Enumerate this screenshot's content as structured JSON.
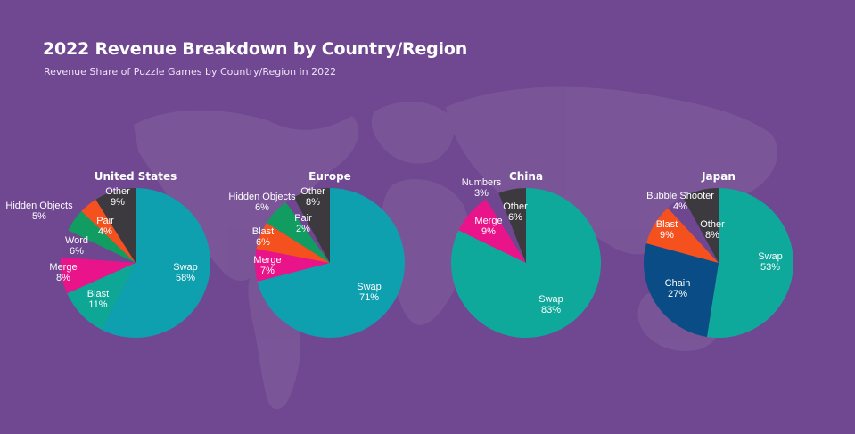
{
  "header": {
    "title": "2022 Revenue Breakdown by Country/Region",
    "subtitle": "Revenue Share of Puzzle Games by Country/Region in 2022"
  },
  "colors": {
    "background": "#704791",
    "map": "#7e5a9c"
  },
  "chart_data": [
    {
      "type": "pie",
      "title": "United States",
      "slices": [
        {
          "label": "Swap",
          "value": 58,
          "display": "58%",
          "color": "#0fa0b0"
        },
        {
          "label": "Blast",
          "value": 11,
          "display": "11%",
          "color": "#0ea796"
        },
        {
          "label": "Merge",
          "value": 8,
          "display": "8%",
          "color": "#ea148a"
        },
        {
          "label": "Word",
          "value": 6,
          "display": "6%",
          "color": "#6f4690"
        },
        {
          "label": "Hidden Objects",
          "value": 5,
          "display": "5%",
          "color": "#119d61"
        },
        {
          "label": "Pair",
          "value": 4,
          "display": "4%",
          "color": "#f4511e"
        },
        {
          "label": "Other",
          "value": 9,
          "display": "9%",
          "color": "#3c3a3e"
        }
      ]
    },
    {
      "type": "pie",
      "title": "Europe",
      "slices": [
        {
          "label": "Swap",
          "value": 71,
          "display": "71%",
          "color": "#0fa0b0"
        },
        {
          "label": "Merge",
          "value": 7,
          "display": "7%",
          "color": "#ea148a"
        },
        {
          "label": "Blast",
          "value": 6,
          "display": "6%",
          "color": "#f4511e"
        },
        {
          "label": "Hidden Objects",
          "value": 6,
          "display": "6%",
          "color": "#119d61"
        },
        {
          "label": "Pair",
          "value": 2,
          "display": "2%",
          "color": "#6f4690"
        },
        {
          "label": "Other",
          "value": 8,
          "display": "8%",
          "color": "#3c3a3e"
        }
      ]
    },
    {
      "type": "pie",
      "title": "China",
      "slices": [
        {
          "label": "Swap",
          "value": 83,
          "display": "83%",
          "color": "#0fa99c"
        },
        {
          "label": "Merge",
          "value": 9,
          "display": "9%",
          "color": "#ea148a"
        },
        {
          "label": "Numbers",
          "value": 3,
          "display": "3%",
          "color": "#6f4690"
        },
        {
          "label": "Other",
          "value": 6,
          "display": "6%",
          "color": "#3c3a3e"
        }
      ]
    },
    {
      "type": "pie",
      "title": "Japan",
      "slices": [
        {
          "label": "Swap",
          "value": 53,
          "display": "53%",
          "color": "#0fa99c"
        },
        {
          "label": "Chain",
          "value": 27,
          "display": "27%",
          "color": "#0a4c86"
        },
        {
          "label": "Blast",
          "value": 9,
          "display": "9%",
          "color": "#f4511e"
        },
        {
          "label": "Bubble Shooter",
          "value": 4,
          "display": "4%",
          "color": "#6f4690"
        },
        {
          "label": "Other",
          "value": 8,
          "display": "8%",
          "color": "#3c3a3e"
        }
      ]
    }
  ]
}
